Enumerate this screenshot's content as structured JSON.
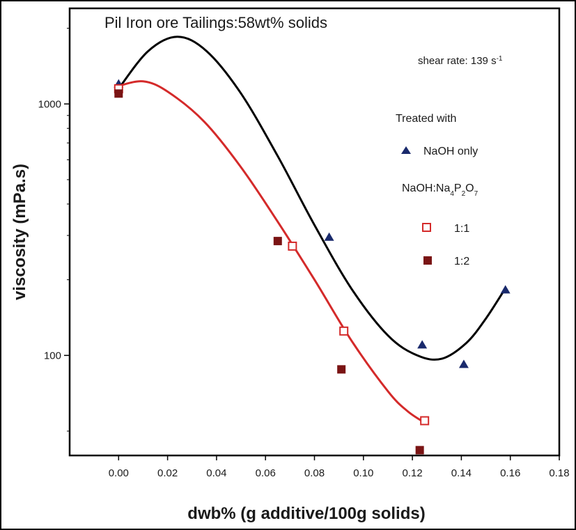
{
  "chart_data": {
    "type": "scatter",
    "title": "Pil Iron ore Tailings:58wt% solids",
    "annotation": "shear rate: 139 s",
    "annotation_sup": "-1",
    "xlabel": "dwb% (g additive/100g solids)",
    "ylabel": "viscosity (mPa.s)",
    "xlim": [
      -0.02,
      0.18
    ],
    "ylim": [
      40,
      2400
    ],
    "yscale": "log",
    "x_ticks": [
      "0.00",
      "0.02",
      "0.04",
      "0.06",
      "0.08",
      "0.10",
      "0.12",
      "0.14",
      "0.16",
      "0.18"
    ],
    "y_ticks": [
      "100",
      "1000"
    ],
    "legend": {
      "heading": "Treated with",
      "group2_heading": "NaOH:Na",
      "group2_parts": [
        "4",
        "P",
        "2",
        "O",
        "7"
      ],
      "placement": "right"
    },
    "colors": {
      "naoh": "#1a2a6c",
      "ratio_1_1": "#d42a2a",
      "ratio_1_2": "#7a1414",
      "fit_black": "#000000",
      "fit_red": "#d42a2a"
    },
    "series": [
      {
        "name": "NaOH only",
        "marker": "triangle",
        "color": "#1a2a6c",
        "points": [
          [
            0.0,
            1200
          ],
          [
            0.086,
            295
          ],
          [
            0.124,
            110
          ],
          [
            0.141,
            92
          ],
          [
            0.158,
            182
          ]
        ]
      },
      {
        "name": "1:1",
        "marker": "open-square",
        "color": "#d42a2a",
        "points": [
          [
            0.0,
            1150
          ],
          [
            0.071,
            272
          ],
          [
            0.092,
            125
          ],
          [
            0.125,
            55
          ]
        ]
      },
      {
        "name": "1:2",
        "marker": "filled-square",
        "color": "#7a1414",
        "points": [
          [
            0.0,
            1100
          ],
          [
            0.065,
            285
          ],
          [
            0.091,
            88
          ],
          [
            0.123,
            42
          ]
        ]
      }
    ],
    "fits": [
      {
        "color": "#000000",
        "points": [
          [
            0.0,
            1150
          ],
          [
            0.012,
            1620
          ],
          [
            0.024,
            1850
          ],
          [
            0.036,
            1620
          ],
          [
            0.05,
            1100
          ],
          [
            0.065,
            620
          ],
          [
            0.08,
            330
          ],
          [
            0.095,
            185
          ],
          [
            0.11,
            120
          ],
          [
            0.122,
            100
          ],
          [
            0.132,
            97
          ],
          [
            0.142,
            112
          ],
          [
            0.15,
            140
          ],
          [
            0.158,
            185
          ]
        ]
      },
      {
        "color": "#d42a2a",
        "points": [
          [
            0.0,
            1180
          ],
          [
            0.01,
            1230
          ],
          [
            0.02,
            1120
          ],
          [
            0.035,
            850
          ],
          [
            0.05,
            560
          ],
          [
            0.065,
            340
          ],
          [
            0.08,
            200
          ],
          [
            0.095,
            115
          ],
          [
            0.11,
            72
          ],
          [
            0.118,
            60
          ],
          [
            0.125,
            54
          ]
        ]
      }
    ]
  }
}
